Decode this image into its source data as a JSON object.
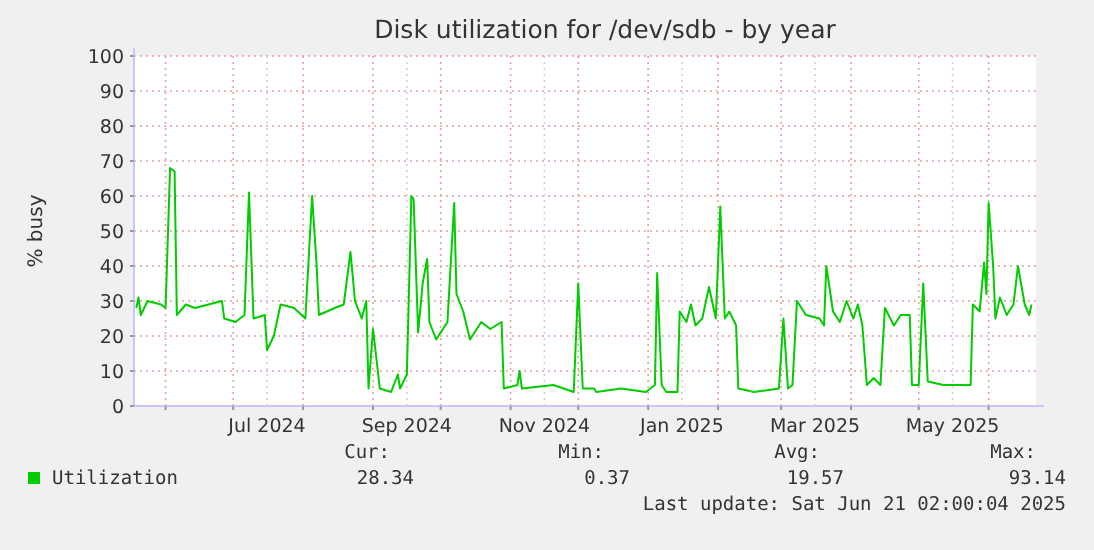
{
  "chart_data": {
    "type": "line",
    "title": "Disk utilization for /dev/sdb - by year",
    "ylabel": "% busy",
    "x": [
      "2024-05-19",
      "2024-05-20",
      "2024-05-21",
      "2024-05-24",
      "2024-05-30",
      "2024-06-01",
      "2024-06-03",
      "2024-06-05",
      "2024-06-06",
      "2024-06-10",
      "2024-06-14",
      "2024-06-20",
      "2024-06-26",
      "2024-06-27",
      "2024-07-02",
      "2024-07-06",
      "2024-07-08",
      "2024-07-10",
      "2024-07-15",
      "2024-07-16",
      "2024-07-19",
      "2024-07-22",
      "2024-07-28",
      "2024-08-02",
      "2024-08-05",
      "2024-08-07",
      "2024-08-08",
      "2024-08-15",
      "2024-08-19",
      "2024-08-22",
      "2024-08-24",
      "2024-08-27",
      "2024-08-29",
      "2024-08-30",
      "2024-09-01",
      "2024-09-04",
      "2024-09-09",
      "2024-09-12",
      "2024-09-13",
      "2024-09-16",
      "2024-09-18",
      "2024-09-19",
      "2024-09-21",
      "2024-09-23",
      "2024-09-25",
      "2024-09-26",
      "2024-09-29",
      "2024-10-04",
      "2024-10-07",
      "2024-10-08",
      "2024-10-11",
      "2024-10-14",
      "2024-10-19",
      "2024-10-23",
      "2024-10-28",
      "2024-10-29",
      "2024-11-04",
      "2024-11-05",
      "2024-11-06",
      "2024-11-20",
      "2024-11-29",
      "2024-12-01",
      "2024-12-03",
      "2024-12-08",
      "2024-12-09",
      "2024-12-20",
      "2024-12-31",
      "2025-01-04",
      "2025-01-05",
      "2025-01-07",
      "2025-01-09",
      "2025-01-14",
      "2025-01-15",
      "2025-01-18",
      "2025-01-20",
      "2025-01-22",
      "2025-01-25",
      "2025-01-28",
      "2025-01-30",
      "2025-01-31",
      "2025-02-02",
      "2025-02-04",
      "2025-02-06",
      "2025-02-09",
      "2025-02-10",
      "2025-02-17",
      "2025-02-28",
      "2025-03-02",
      "2025-03-04",
      "2025-03-06",
      "2025-03-08",
      "2025-03-12",
      "2025-03-18",
      "2025-03-20",
      "2025-03-21",
      "2025-03-24",
      "2025-03-27",
      "2025-03-30",
      "2025-04-02",
      "2025-04-04",
      "2025-04-06",
      "2025-04-08",
      "2025-04-11",
      "2025-04-14",
      "2025-04-16",
      "2025-04-20",
      "2025-04-23",
      "2025-04-27",
      "2025-04-28",
      "2025-05-01",
      "2025-05-03",
      "2025-05-05",
      "2025-05-12",
      "2025-05-24",
      "2025-05-25",
      "2025-05-28",
      "2025-05-30",
      "2025-05-31",
      "2025-06-01",
      "2025-06-03",
      "2025-06-04",
      "2025-06-06",
      "2025-06-09",
      "2025-06-12",
      "2025-06-14",
      "2025-06-17",
      "2025-06-19",
      "2025-06-20"
    ],
    "series": [
      {
        "name": "Utilization",
        "color": "#00cc00",
        "values": [
          28,
          31,
          26,
          30,
          29,
          28,
          68,
          67,
          26,
          29,
          28,
          29,
          30,
          25,
          24,
          26,
          61,
          25,
          26,
          16,
          20,
          29,
          28,
          25,
          60,
          40,
          26,
          28,
          29,
          44,
          30,
          25,
          30,
          5,
          22,
          5,
          4,
          9,
          5,
          9,
          60,
          59,
          21,
          35,
          42,
          24,
          19,
          24,
          58,
          32,
          27,
          19,
          24,
          22,
          24,
          5,
          6,
          10,
          5,
          6,
          4,
          35,
          5,
          5,
          4,
          5,
          4,
          6,
          38,
          6,
          4,
          4,
          27,
          24,
          29,
          23,
          25,
          34,
          28,
          25,
          57,
          25,
          27,
          23,
          5,
          4,
          5,
          25,
          5,
          6,
          30,
          26,
          25,
          23,
          40,
          27,
          24,
          30,
          25,
          29,
          23,
          6,
          8,
          6,
          28,
          23,
          26,
          26,
          6,
          6,
          35,
          7,
          6,
          6,
          29,
          27,
          41,
          32,
          58,
          40,
          25,
          31,
          26,
          29,
          40,
          29,
          26,
          29
        ]
      }
    ],
    "xlim": [
      "2024-05-18",
      "2025-06-22"
    ],
    "xticks": [
      {
        "value": "2024-06-01",
        "label": null
      },
      {
        "value": "2024-07-01",
        "label": null
      },
      {
        "value": "2024-07-16",
        "label": "Jul 2024"
      },
      {
        "value": "2024-08-01",
        "label": null
      },
      {
        "value": "2024-09-01",
        "label": null
      },
      {
        "value": "2024-09-16",
        "label": "Sep 2024"
      },
      {
        "value": "2024-10-01",
        "label": null
      },
      {
        "value": "2024-11-01",
        "label": null
      },
      {
        "value": "2024-11-16",
        "label": "Nov 2024"
      },
      {
        "value": "2024-12-01",
        "label": null
      },
      {
        "value": "2025-01-01",
        "label": null
      },
      {
        "value": "2025-01-16",
        "label": "Jan 2025"
      },
      {
        "value": "2025-02-01",
        "label": null
      },
      {
        "value": "2025-03-01",
        "label": null
      },
      {
        "value": "2025-03-16",
        "label": "Mar 2025"
      },
      {
        "value": "2025-04-01",
        "label": null
      },
      {
        "value": "2025-05-01",
        "label": null
      },
      {
        "value": "2025-05-16",
        "label": "May 2025"
      },
      {
        "value": "2025-06-01",
        "label": null
      }
    ],
    "ylim": [
      0,
      100
    ],
    "yticks": [
      0,
      10,
      20,
      30,
      40,
      50,
      60,
      70,
      80,
      90,
      100
    ],
    "grid": true,
    "legend": "bottom left",
    "annotations": [
      "Cur:",
      "Min:",
      "Avg:",
      "Max:",
      "28.34",
      "0.37",
      "19.57",
      "93.14",
      "Last update: Sat Jun 21 02:00:04 2025"
    ]
  }
}
